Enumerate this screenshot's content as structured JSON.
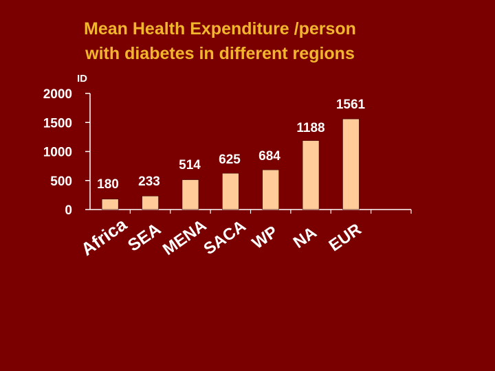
{
  "slide": {
    "title_line1": "Mean Health Expenditure /person",
    "title_line2": "with diabetes in different regions"
  },
  "chart_data": {
    "type": "bar",
    "title": "Mean Health Expenditure /person with diabetes in different regions",
    "ylabel": "ID",
    "xlabel": "",
    "ylim": [
      0,
      2000
    ],
    "yticks": [
      0,
      500,
      1000,
      1500,
      2000
    ],
    "categories": [
      "Africa",
      "SEA",
      "MENA",
      "SACA",
      "WP",
      "NA",
      "EUR"
    ],
    "values": [
      180,
      233,
      514,
      625,
      684,
      1188,
      1561
    ],
    "value_labels": [
      "180",
      "233",
      "514",
      "625",
      "684",
      "1188",
      "1561"
    ],
    "grid": false,
    "colors": {
      "background": "#7a0000",
      "bar": "#ffcc99",
      "title": "#f2b62e",
      "text": "#ffffff"
    }
  }
}
